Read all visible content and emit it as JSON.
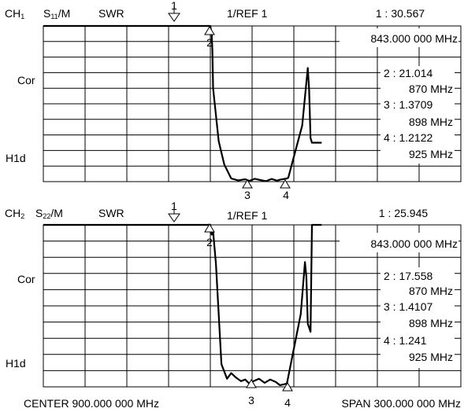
{
  "footer": {
    "center": "CENTER 900.000 000 MHz",
    "span": "SPAN 300.000 000 MHz"
  },
  "channels": [
    {
      "channel": "CH",
      "sub": "1",
      "param": "S",
      "param_sub": "11",
      "format_suffix": "/M",
      "format": "SWR",
      "scale": "1/REF 1",
      "side_labels": [
        "Cor",
        "H1d"
      ],
      "active_readout": "1 : 30.567",
      "active_freq": "843.000 000 MHz",
      "readouts": [
        {
          "label": "2 : 21.014",
          "freq": "870 MHz"
        },
        {
          "label": "3 : 1.3709",
          "freq": "898 MHz"
        },
        {
          "label": "4 : 1.2122",
          "freq": "925 MHz"
        }
      ],
      "markers": [
        {
          "id": "1",
          "orient": "down"
        },
        {
          "id": "2",
          "orient": "up"
        },
        {
          "id": "3",
          "orient": "up"
        },
        {
          "id": "4",
          "orient": "up"
        }
      ],
      "chart_data": {
        "type": "line",
        "xlabel": "",
        "ylabel": "",
        "xlim": [
          750,
          1050
        ],
        "ylim": [
          1,
          11
        ],
        "grid": true,
        "x": [
          750,
          753,
          800,
          850,
          858,
          860,
          870,
          871,
          871.5,
          872,
          876,
          880,
          885,
          890,
          895,
          898,
          902,
          906,
          910,
          914,
          918,
          920,
          925,
          926,
          936,
          940,
          941,
          942,
          943,
          950
        ],
        "y": [
          11,
          11,
          11,
          11,
          11,
          11,
          11,
          10.4,
          9.4,
          7,
          3.6,
          2.1,
          1.2,
          1.08,
          1.15,
          1.05,
          1.18,
          1.1,
          1.03,
          1.17,
          1.06,
          1.12,
          1.2,
          1.25,
          4.6,
          8.3,
          6.9,
          3.8,
          3.5,
          3.5
        ]
      }
    },
    {
      "channel": "CH",
      "sub": "2",
      "param": "S",
      "param_sub": "22",
      "format_suffix": "/M",
      "format": "SWR",
      "scale": "1/REF 1",
      "side_labels": [
        "Cor",
        "H1d"
      ],
      "active_readout": "1 : 25.945",
      "active_freq": "843.000 000 MHz",
      "readouts": [
        {
          "label": "2 : 17.558",
          "freq": "870 MHz"
        },
        {
          "label": "3 : 1.4107",
          "freq": "898 MHz"
        },
        {
          "label": "4 : 1.241",
          "freq": "925 MHz"
        }
      ],
      "markers": [
        {
          "id": "1",
          "orient": "down"
        },
        {
          "id": "2",
          "orient": "up"
        },
        {
          "id": "3",
          "orient": "up"
        },
        {
          "id": "4",
          "orient": "up"
        }
      ],
      "chart_data": {
        "type": "line",
        "xlabel": "",
        "ylabel": "",
        "xlim": [
          750,
          1050
        ],
        "ylim": [
          1,
          11
        ],
        "grid": true,
        "x": [
          750,
          753,
          800,
          850,
          858,
          860,
          870,
          871,
          872,
          874,
          878,
          882,
          885,
          888,
          892,
          895,
          898,
          901,
          905,
          909,
          913,
          917,
          920,
          925,
          935,
          938,
          939,
          940,
          942,
          943,
          950
        ],
        "y": [
          11,
          11,
          11,
          11,
          11,
          11,
          11,
          10.4,
          10.6,
          8.6,
          2.4,
          1.5,
          1.85,
          1.6,
          1.35,
          1.45,
          1.2,
          1.35,
          1.5,
          1.25,
          1.45,
          1.3,
          1.1,
          1.2,
          5.5,
          8.7,
          7.8,
          4.9,
          4.4,
          11,
          11
        ]
      }
    }
  ]
}
